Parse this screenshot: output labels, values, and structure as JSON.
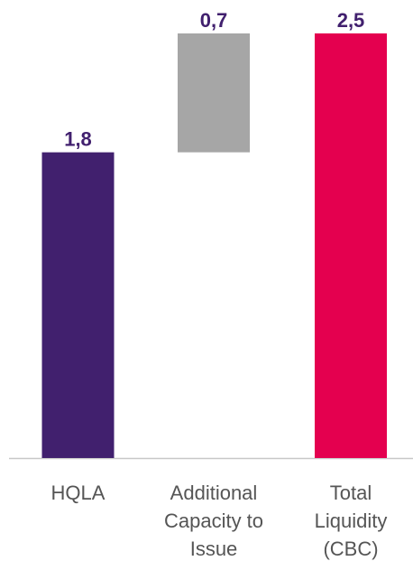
{
  "chart_data": {
    "type": "waterfall",
    "categories": [
      "HQLA",
      "Additional Capacity to Issue",
      "Total Liquidity (CBC)"
    ],
    "values": [
      1.8,
      0.7,
      2.5
    ],
    "value_labels": [
      "1,8",
      "0,7",
      "2,5"
    ],
    "colors": [
      "#41206e",
      "#a6a6a6",
      "#e4004f"
    ]
  }
}
